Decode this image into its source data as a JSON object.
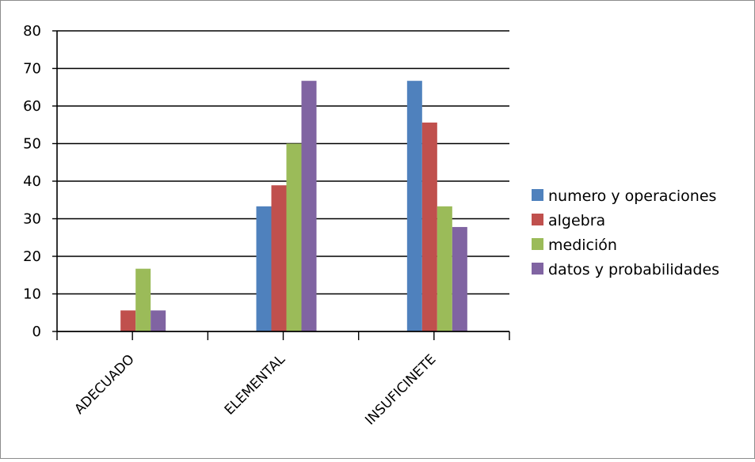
{
  "chart_data": {
    "type": "bar",
    "title": "",
    "xlabel": "",
    "ylabel": "",
    "categories": [
      "ADECUADO",
      "ELEMENTAL",
      "INSUFICINETE"
    ],
    "ylim": [
      0,
      80
    ],
    "yticks": [
      "0",
      "10",
      "20",
      "30",
      "40",
      "50",
      "60",
      "70",
      "80"
    ],
    "grid": true,
    "legend_position": "right",
    "series": [
      {
        "name": "numero y operaciones",
        "color": "#4f81bd",
        "values": [
          0,
          33.3,
          66.7
        ]
      },
      {
        "name": "algebra",
        "color": "#c0504d",
        "values": [
          5.6,
          38.9,
          55.6
        ]
      },
      {
        "name": "medición",
        "color": "#9bbb59",
        "values": [
          16.7,
          50,
          33.3
        ]
      },
      {
        "name": "datos y probabilidades",
        "color": "#8064a2",
        "values": [
          5.6,
          66.7,
          27.8
        ]
      }
    ]
  }
}
